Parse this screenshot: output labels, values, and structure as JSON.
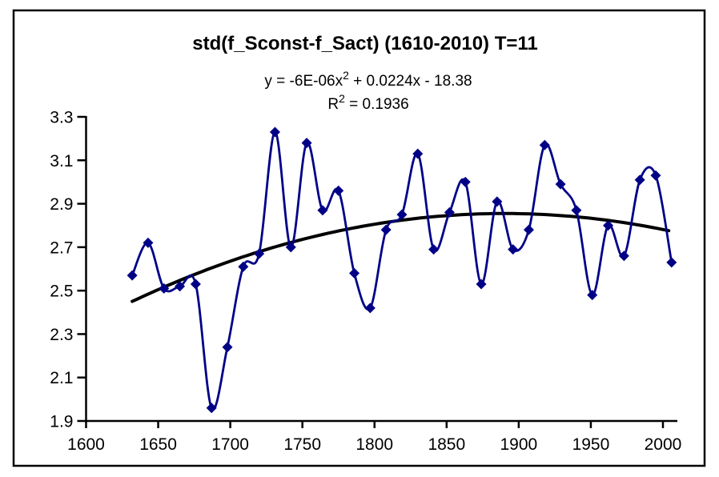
{
  "title": "std(f_Sconst-f_Sact) (1610-2010) T=11",
  "annotation": {
    "equation_prefix": "y = -6E-06x",
    "equation_sup": "2",
    "equation_suffix": " + 0.0224x - 18.38",
    "r2_prefix": "R",
    "r2_sup": "2",
    "r2_suffix": " = 0.1936"
  },
  "colors": {
    "series": "#000087",
    "trendline": "#000000",
    "axis": "#000000",
    "text": "#000000",
    "background": "#ffffff"
  },
  "chart_data": {
    "type": "line",
    "title": "std(f_Sconst-f_Sact) (1610-2010) T=11",
    "marker": "diamond",
    "smooth": true,
    "grid": false,
    "legend": false,
    "xlim": [
      1600,
      2010
    ],
    "ylim": [
      1.9,
      3.3
    ],
    "x_ticks": [
      1600,
      1650,
      1700,
      1750,
      1800,
      1850,
      1900,
      1950,
      2000
    ],
    "y_ticks": [
      1.9,
      2.1,
      2.3,
      2.5,
      2.7,
      2.9,
      3.1,
      3.3
    ],
    "x": [
      1632,
      1643,
      1654,
      1665,
      1676,
      1687,
      1698,
      1709,
      1720,
      1731,
      1742,
      1753,
      1764,
      1775,
      1786,
      1797,
      1808,
      1819,
      1830,
      1841,
      1852,
      1863,
      1874,
      1885,
      1896,
      1907,
      1918,
      1929,
      1940,
      1951,
      1962,
      1973,
      1984,
      1995,
      2006
    ],
    "values": [
      2.57,
      2.72,
      2.51,
      2.52,
      2.53,
      1.96,
      2.24,
      2.61,
      2.67,
      3.23,
      2.7,
      3.18,
      2.87,
      2.96,
      2.58,
      2.42,
      2.78,
      2.85,
      3.13,
      2.69,
      2.86,
      3.0,
      2.53,
      2.91,
      2.69,
      2.78,
      3.17,
      2.99,
      2.87,
      2.48,
      2.8,
      2.66,
      3.01,
      3.03,
      2.63
    ],
    "trendline": {
      "kind": "polynomial-2",
      "equation_text": "y = -6E-06x2 + 0.0224x - 18.38",
      "r_squared": 0.1936,
      "vertex_x": 1890,
      "vertex_y": 2.855,
      "a": -6.08e-06,
      "x_start": 1632,
      "x_end": 2006
    }
  }
}
